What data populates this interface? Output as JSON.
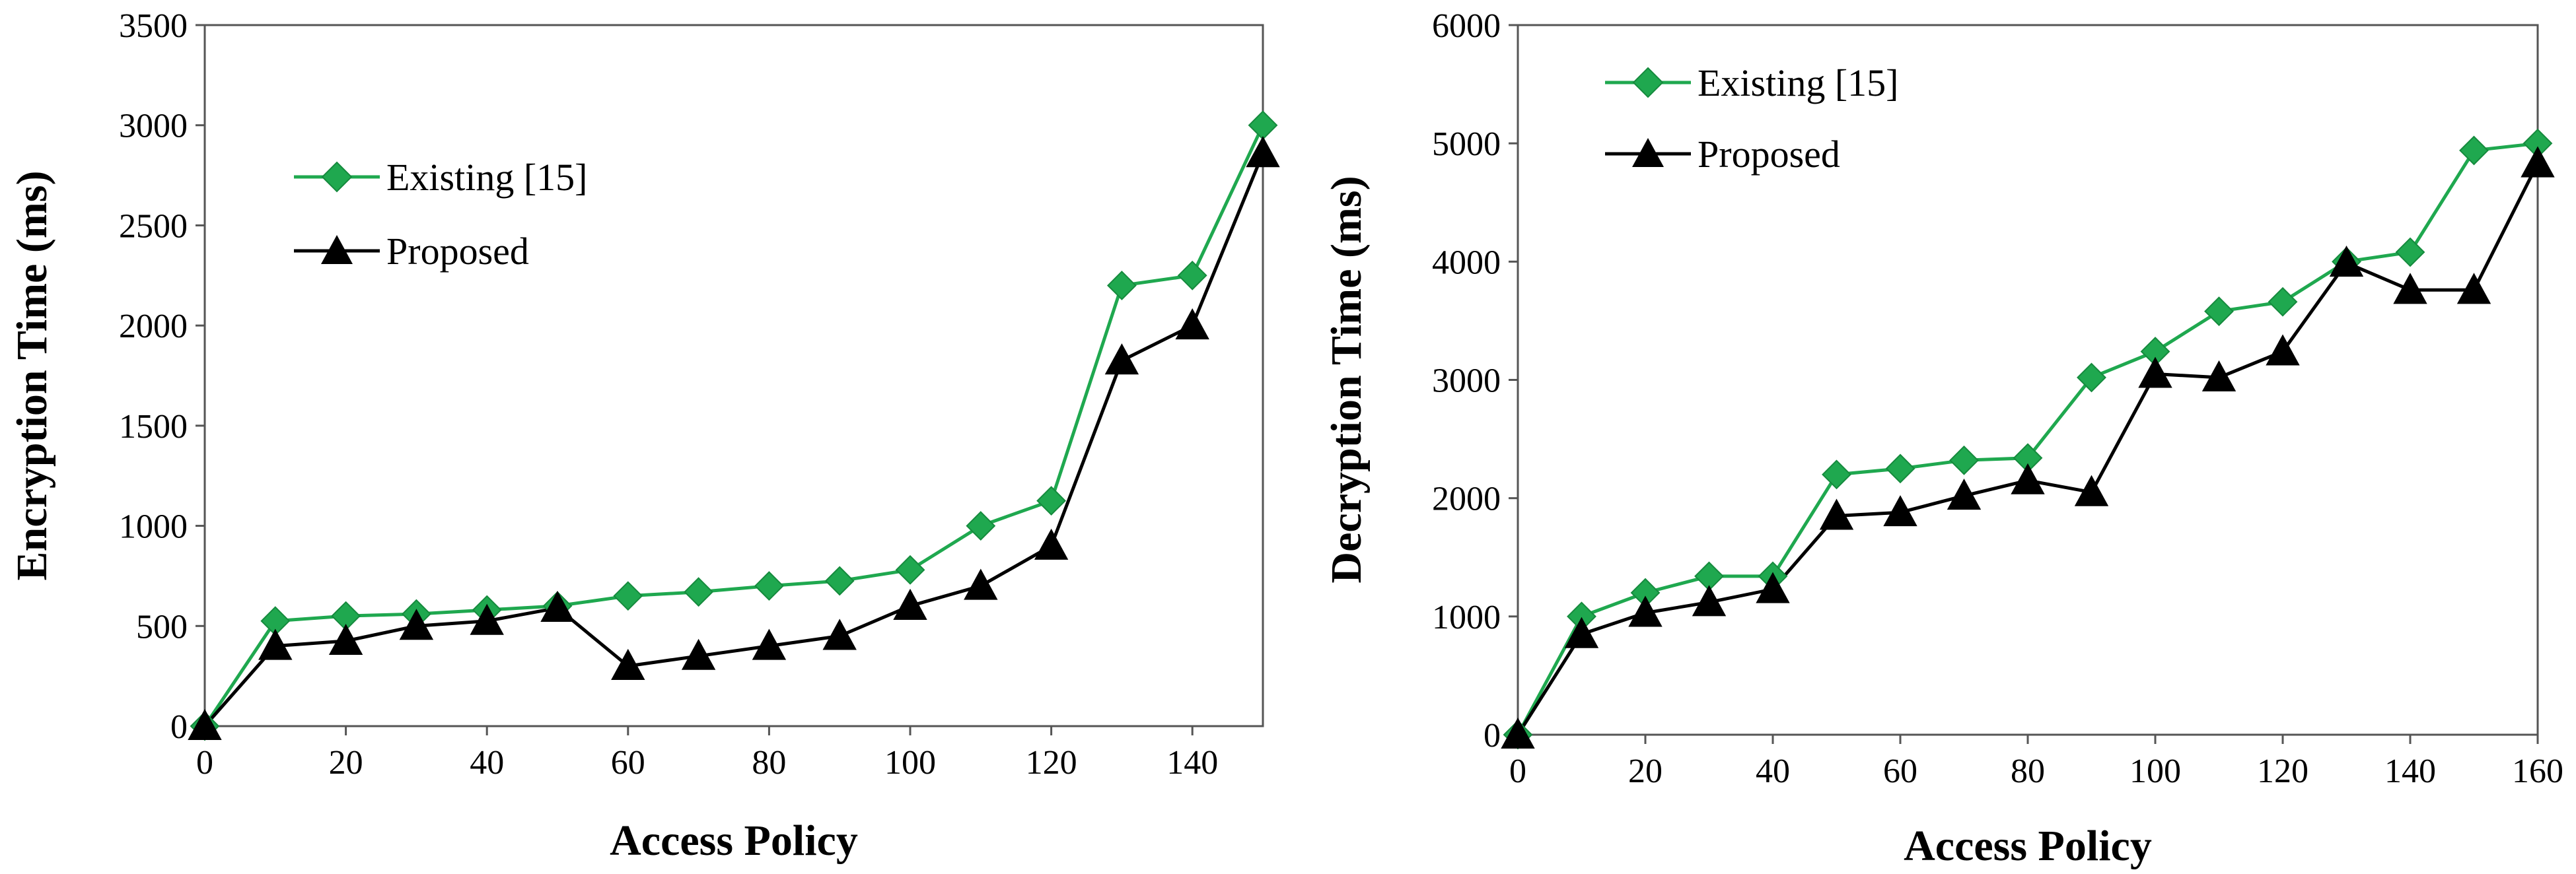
{
  "chart_data": [
    {
      "type": "line",
      "title": "",
      "xlabel": "Access Policy",
      "ylabel": "Encryption Time (ms)",
      "xlim": [
        0,
        150
      ],
      "ylim": [
        0,
        3500
      ],
      "x_ticks": [
        0,
        20,
        40,
        60,
        80,
        100,
        120,
        140
      ],
      "y_ticks": [
        0,
        500,
        1000,
        1500,
        2000,
        2500,
        3000,
        3500
      ],
      "grid": false,
      "legend_position": "top-left",
      "x": [
        0,
        10,
        20,
        30,
        40,
        50,
        60,
        70,
        80,
        90,
        100,
        110,
        120,
        130,
        140,
        150
      ],
      "series": [
        {
          "name": "Existing [15]",
          "color": "#1fa84f",
          "marker": "diamond",
          "values": [
            0,
            525,
            550,
            560,
            580,
            600,
            650,
            670,
            700,
            725,
            780,
            1000,
            1125,
            2200,
            2250,
            3000
          ]
        },
        {
          "name": "Proposed",
          "color": "#000000",
          "marker": "triangle",
          "values": [
            0,
            400,
            425,
            500,
            525,
            590,
            300,
            350,
            400,
            450,
            600,
            700,
            900,
            1825,
            2000,
            2860
          ]
        }
      ]
    },
    {
      "type": "line",
      "title": "",
      "xlabel": "Access Policy",
      "ylabel": "Decryption Time (ms)",
      "xlim": [
        0,
        160
      ],
      "ylim": [
        0,
        6000
      ],
      "x_ticks": [
        0,
        20,
        40,
        60,
        80,
        100,
        120,
        140,
        160
      ],
      "y_ticks": [
        0,
        1000,
        2000,
        3000,
        4000,
        5000,
        6000
      ],
      "grid": false,
      "legend_position": "top-left",
      "x": [
        0,
        10,
        20,
        30,
        40,
        50,
        60,
        70,
        80,
        90,
        100,
        110,
        120,
        130,
        140,
        150,
        160
      ],
      "series": [
        {
          "name": "Existing [15]",
          "color": "#1fa84f",
          "marker": "diamond",
          "values": [
            0,
            1000,
            1200,
            1340,
            1340,
            2200,
            2250,
            2320,
            2340,
            3020,
            3240,
            3580,
            3660,
            4000,
            4080,
            4940,
            5000
          ]
        },
        {
          "name": "Proposed",
          "color": "#000000",
          "marker": "triangle",
          "values": [
            0,
            850,
            1030,
            1120,
            1230,
            1850,
            1880,
            2020,
            2150,
            2050,
            3050,
            3020,
            3240,
            3990,
            3760,
            3760,
            4830
          ]
        }
      ]
    }
  ]
}
